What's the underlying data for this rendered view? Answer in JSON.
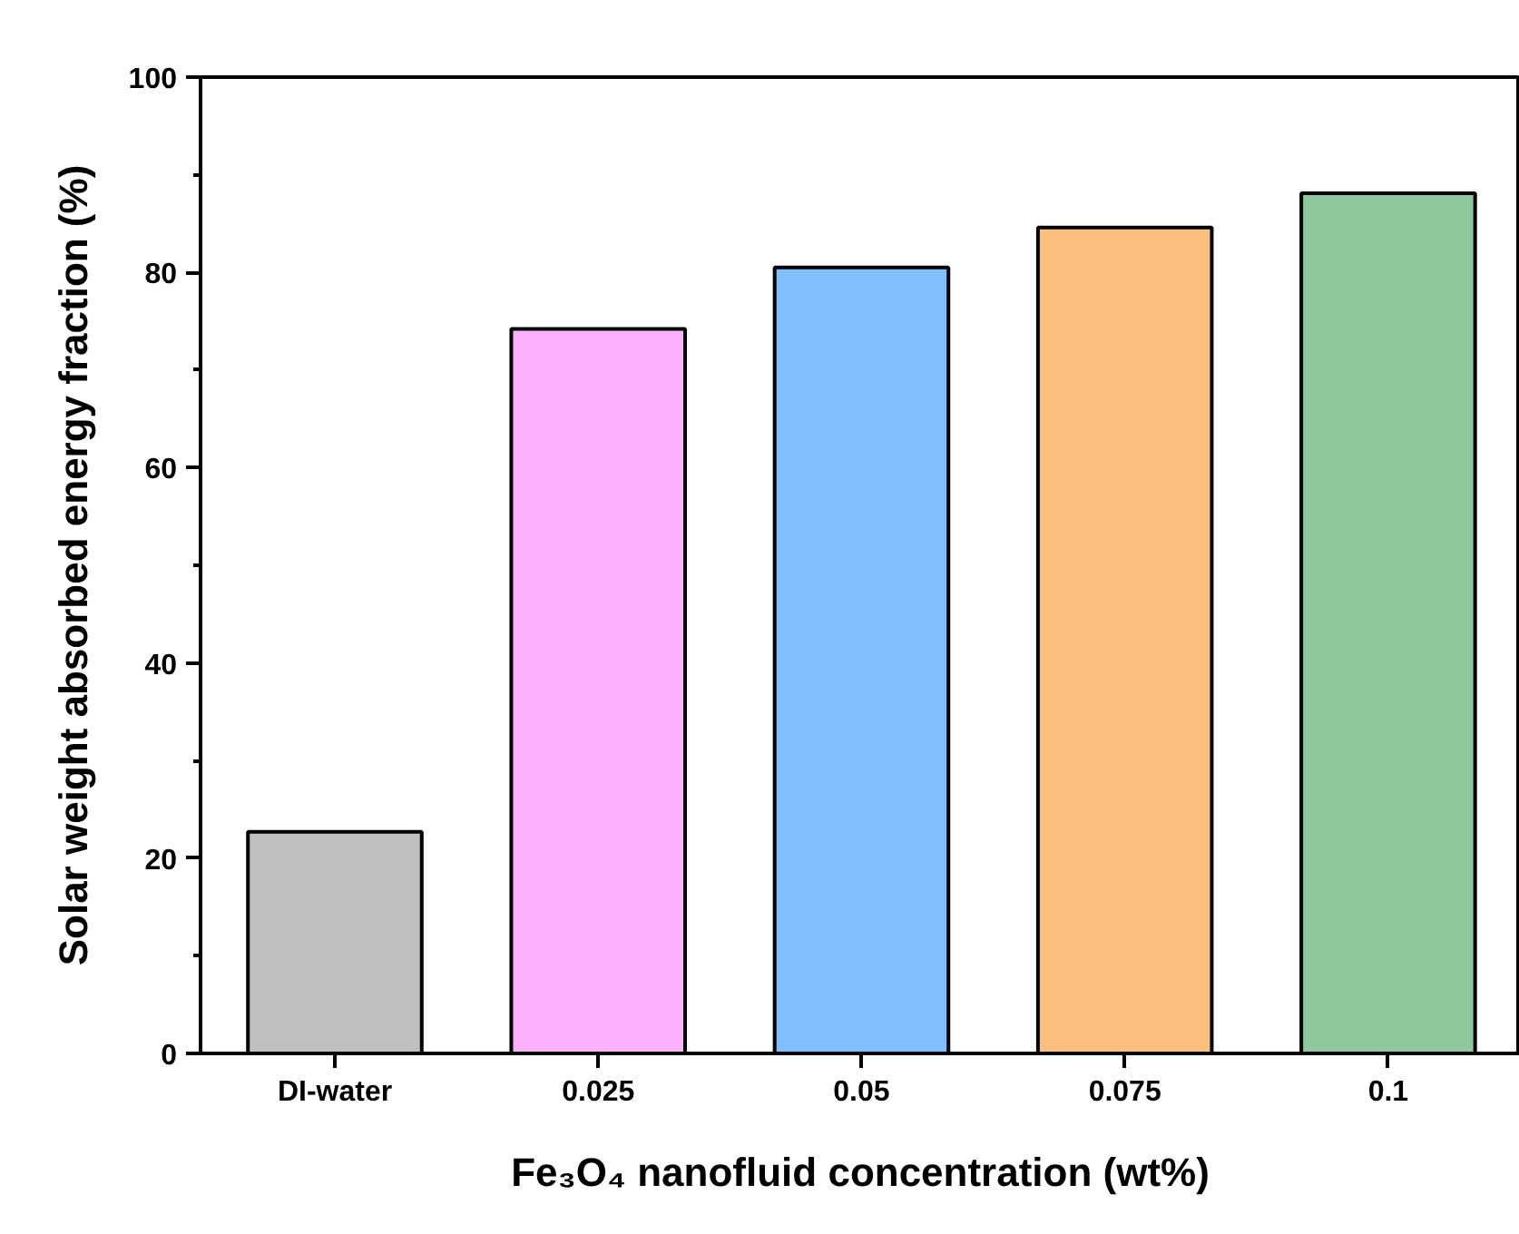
{
  "chart_data": {
    "type": "bar",
    "xlabel": "Fe₃O₄ nanofluid concentration (wt%)",
    "ylabel": "Solar weight absorbed energy fraction (%)",
    "categories": [
      "DI-water",
      "0.025",
      "0.05",
      "0.075",
      "0.1"
    ],
    "values": [
      22.7,
      74.2,
      80.5,
      84.6,
      88.1
    ],
    "colors": [
      "#c0c0c0",
      "#fbb0fb",
      "#7fbfff",
      "#fdbf7f",
      "#8dc99d"
    ],
    "ylim": [
      0,
      100
    ],
    "yticks": [
      0,
      20,
      40,
      60,
      80,
      100
    ],
    "grid": false
  }
}
